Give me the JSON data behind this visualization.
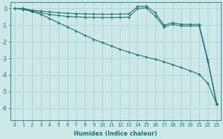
{
  "xlabel": "Humidex (Indice chaleur)",
  "background_color": "#cce8e8",
  "grid_color": "#b0d4d4",
  "line_color": "#1a7070",
  "xlim": [
    -0.5,
    23.5
  ],
  "ylim": [
    -6.7,
    0.4
  ],
  "yticks": [
    0,
    -1,
    -2,
    -3,
    -4,
    -5,
    -6
  ],
  "xticks": [
    0,
    1,
    2,
    3,
    4,
    5,
    6,
    7,
    8,
    9,
    10,
    11,
    12,
    13,
    14,
    15,
    16,
    17,
    18,
    19,
    20,
    21,
    22,
    23
  ],
  "series": [
    {
      "x": [
        0,
        1,
        2,
        3,
        4,
        5,
        6,
        7,
        8,
        9,
        10,
        11,
        12,
        13,
        14,
        15,
        16,
        17,
        18,
        19,
        20,
        21,
        22,
        23
      ],
      "y": [
        0,
        0,
        -0.1,
        -0.15,
        -0.2,
        -0.25,
        -0.28,
        -0.3,
        -0.32,
        -0.33,
        -0.34,
        -0.34,
        -0.33,
        -0.32,
        0.12,
        0.15,
        -0.25,
        -1.0,
        -0.85,
        -0.95,
        -0.95,
        -0.95,
        -3.1,
        -5.7
      ]
    },
    {
      "x": [
        0,
        1,
        2,
        3,
        4,
        5,
        6,
        7,
        8,
        9,
        10,
        11,
        12,
        13,
        14,
        15,
        16,
        17,
        18,
        19,
        20,
        21,
        22,
        23
      ],
      "y": [
        0,
        0,
        -0.15,
        -0.25,
        -0.35,
        -0.42,
        -0.47,
        -0.5,
        -0.52,
        -0.53,
        -0.54,
        -0.54,
        -0.53,
        -0.52,
        0.0,
        0.05,
        -0.45,
        -1.1,
        -0.95,
        -1.05,
        -1.05,
        -1.05,
        -3.2,
        -5.75
      ]
    },
    {
      "x": [
        0,
        1,
        2,
        3,
        4,
        5,
        6,
        7,
        8,
        9,
        10,
        11,
        12,
        13,
        14,
        15,
        16,
        17,
        18,
        19,
        20,
        21,
        22,
        23
      ],
      "y": [
        0,
        -0.05,
        -0.18,
        -0.35,
        -0.6,
        -0.85,
        -1.1,
        -1.35,
        -1.6,
        -1.85,
        -2.05,
        -2.25,
        -2.45,
        -2.62,
        -2.78,
        -2.92,
        -3.05,
        -3.2,
        -3.38,
        -3.55,
        -3.75,
        -3.95,
        -4.5,
        -5.75
      ]
    }
  ]
}
